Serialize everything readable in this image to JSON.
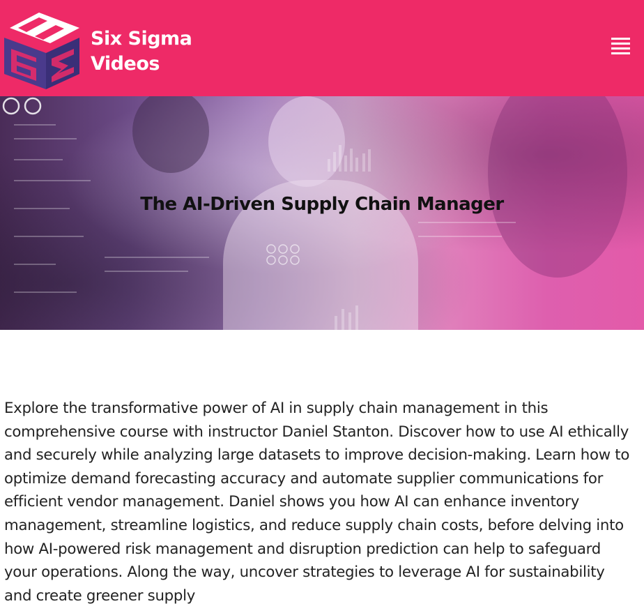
{
  "header": {
    "brand_line1": "Six Sigma",
    "brand_line2": "Videos",
    "background_color": "#ee2a67",
    "logo_icon": "cube-logo-icon",
    "menu_icon": "hamburger-menu-icon"
  },
  "hero": {
    "title": "The AI-Driven Supply Chain Manager"
  },
  "description": "Explore the transformative power of AI in supply chain management in this comprehensive course with instructor Daniel Stanton. Discover how to use AI ethically and securely while analyzing large datasets to improve decision-making. Learn how to optimize demand forecasting accuracy and automate supplier communications for efficient vendor management. Daniel shows you how AI can enhance inventory management, streamline logistics, and reduce supply chain costs, before delving into how AI-powered risk management and disruption prediction can help to safeguard your operations. Along the way, uncover strategies to leverage AI for sustainability and create greener supply"
}
